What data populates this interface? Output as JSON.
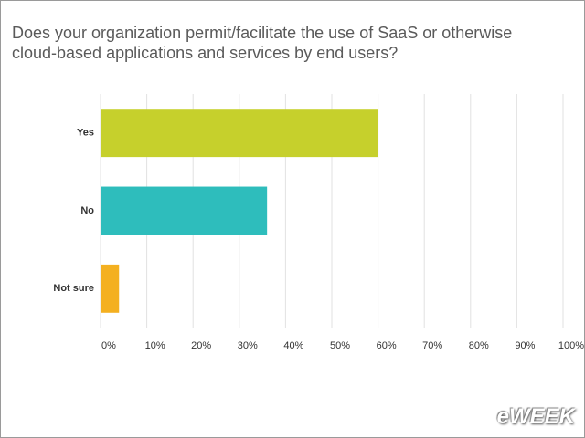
{
  "chart_data": {
    "type": "bar",
    "orientation": "horizontal",
    "title": "Does your organization permit/facilitate the use of SaaS or otherwise cloud-based applications and services by end users?",
    "categories": [
      "Yes",
      "No",
      "Not sure"
    ],
    "values": [
      60,
      36,
      4
    ],
    "colors": [
      "#c6d02c",
      "#2ebdbc",
      "#f4b020"
    ],
    "xlim": [
      0,
      100
    ],
    "xticks": [
      {
        "value": 0,
        "label": "0%"
      },
      {
        "value": 10,
        "label": "10%"
      },
      {
        "value": 20,
        "label": "20%"
      },
      {
        "value": 30,
        "label": "30%"
      },
      {
        "value": 40,
        "label": "40%"
      },
      {
        "value": 50,
        "label": "50%"
      },
      {
        "value": 60,
        "label": "60%"
      },
      {
        "value": 70,
        "label": "70%"
      },
      {
        "value": 80,
        "label": "80%"
      },
      {
        "value": 90,
        "label": "90%"
      },
      {
        "value": 100,
        "label": "100%"
      }
    ],
    "grid": true,
    "watermark": "eWEEK"
  }
}
